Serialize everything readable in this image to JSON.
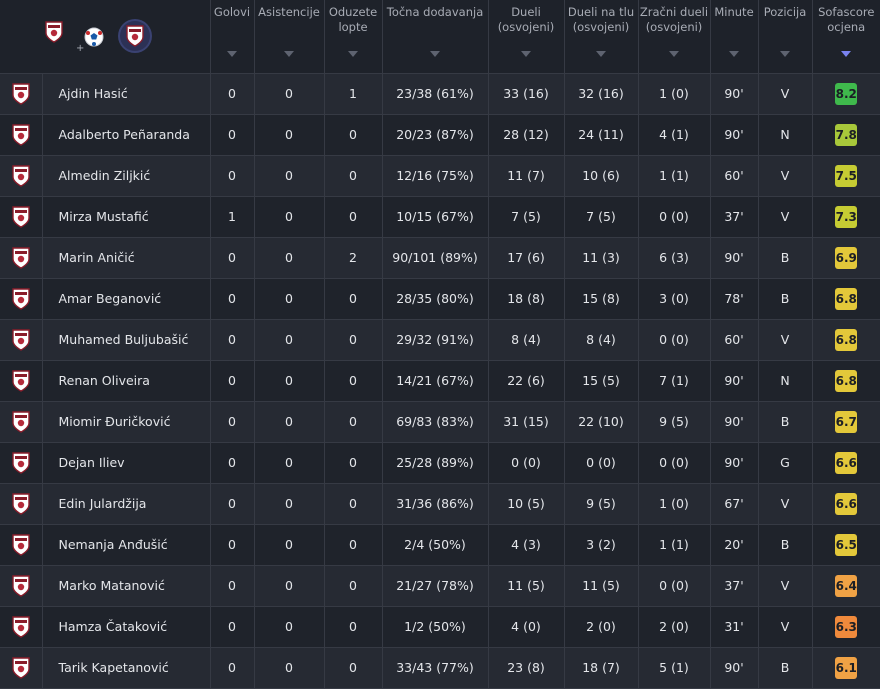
{
  "header": {
    "team_picker": {
      "options": [
        {
          "name": "combined",
          "icon": "club-crest-plus-ball"
        },
        {
          "name": "home-team",
          "icon": "club-crest-icon",
          "selected": true
        },
        {
          "name": "away-team",
          "icon": "soccer-ball-icon"
        }
      ],
      "plus": "+"
    },
    "columns": [
      {
        "key": "goals",
        "label": "Golovi"
      },
      {
        "key": "assists",
        "label": "Asistencije"
      },
      {
        "key": "tackles_won",
        "label": "Oduzete lopte"
      },
      {
        "key": "accurate_passes",
        "label": "Točna dodavanja"
      },
      {
        "key": "duels",
        "label": "Dueli (osvojeni)"
      },
      {
        "key": "ground_duels",
        "label": "Dueli na tlu (osvojeni)"
      },
      {
        "key": "aerial_duels",
        "label": "Zračni dueli (osvojeni)"
      },
      {
        "key": "minutes",
        "label": "Minute"
      },
      {
        "key": "position",
        "label": "Pozicija"
      },
      {
        "key": "rating",
        "label": "Sofascore ocjena",
        "sorted": true
      }
    ]
  },
  "colors": {
    "accent_sort": "#7a83f0",
    "rating_green_dark": "#3fb94c",
    "rating_lime": "#a8c83a",
    "rating_yellow_green": "#c6cc33",
    "rating_yellow": "#e3c83a",
    "rating_orange_light": "#f0a245",
    "rating_orange": "#f08a3c"
  },
  "players": [
    {
      "name": "Ajdin Hasić",
      "goals": "0",
      "assists": "0",
      "tackles": "1",
      "passes": "23/38 (61%)",
      "duels": "33 (16)",
      "ground": "32 (16)",
      "aerial": "1 (0)",
      "minutes": "90'",
      "position": "V",
      "rating": "8.2",
      "rating_color": "#3fb94c"
    },
    {
      "name": "Adalberto Peñaranda",
      "goals": "0",
      "assists": "0",
      "tackles": "0",
      "passes": "20/23 (87%)",
      "duels": "28 (12)",
      "ground": "24 (11)",
      "aerial": "4 (1)",
      "minutes": "90'",
      "position": "N",
      "rating": "7.8",
      "rating_color": "#a8c83a"
    },
    {
      "name": "Almedin Ziljkić",
      "goals": "0",
      "assists": "0",
      "tackles": "0",
      "passes": "12/16 (75%)",
      "duels": "11 (7)",
      "ground": "10 (6)",
      "aerial": "1 (1)",
      "minutes": "60'",
      "position": "V",
      "rating": "7.5",
      "rating_color": "#c6cc33"
    },
    {
      "name": "Mirza Mustafić",
      "goals": "1",
      "assists": "0",
      "tackles": "0",
      "passes": "10/15 (67%)",
      "duels": "7 (5)",
      "ground": "7 (5)",
      "aerial": "0 (0)",
      "minutes": "37'",
      "position": "V",
      "rating": "7.3",
      "rating_color": "#c6cc33"
    },
    {
      "name": "Marin Aničić",
      "goals": "0",
      "assists": "0",
      "tackles": "2",
      "passes": "90/101 (89%)",
      "duels": "17 (6)",
      "ground": "11 (3)",
      "aerial": "6 (3)",
      "minutes": "90'",
      "position": "B",
      "rating": "6.9",
      "rating_color": "#e3c83a"
    },
    {
      "name": "Amar Beganović",
      "goals": "0",
      "assists": "0",
      "tackles": "0",
      "passes": "28/35 (80%)",
      "duels": "18 (8)",
      "ground": "15 (8)",
      "aerial": "3 (0)",
      "minutes": "78'",
      "position": "B",
      "rating": "6.8",
      "rating_color": "#e3c83a"
    },
    {
      "name": "Muhamed Buljubašić",
      "goals": "0",
      "assists": "0",
      "tackles": "0",
      "passes": "29/32 (91%)",
      "duels": "8 (4)",
      "ground": "8 (4)",
      "aerial": "0 (0)",
      "minutes": "60'",
      "position": "V",
      "rating": "6.8",
      "rating_color": "#e3c83a"
    },
    {
      "name": "Renan Oliveira",
      "goals": "0",
      "assists": "0",
      "tackles": "0",
      "passes": "14/21 (67%)",
      "duels": "22 (6)",
      "ground": "15 (5)",
      "aerial": "7 (1)",
      "minutes": "90'",
      "position": "N",
      "rating": "6.8",
      "rating_color": "#e3c83a"
    },
    {
      "name": "Miomir Đuričković",
      "goals": "0",
      "assists": "0",
      "tackles": "0",
      "passes": "69/83 (83%)",
      "duels": "31 (15)",
      "ground": "22 (10)",
      "aerial": "9 (5)",
      "minutes": "90'",
      "position": "B",
      "rating": "6.7",
      "rating_color": "#e3c83a"
    },
    {
      "name": "Dejan Iliev",
      "goals": "0",
      "assists": "0",
      "tackles": "0",
      "passes": "25/28 (89%)",
      "duels": "0 (0)",
      "ground": "0 (0)",
      "aerial": "0 (0)",
      "minutes": "90'",
      "position": "G",
      "rating": "6.6",
      "rating_color": "#e3c83a"
    },
    {
      "name": "Edin Julardžija",
      "goals": "0",
      "assists": "0",
      "tackles": "0",
      "passes": "31/36 (86%)",
      "duels": "10 (5)",
      "ground": "9 (5)",
      "aerial": "1 (0)",
      "minutes": "67'",
      "position": "V",
      "rating": "6.6",
      "rating_color": "#e3c83a"
    },
    {
      "name": "Nemanja Anđušić",
      "goals": "0",
      "assists": "0",
      "tackles": "0",
      "passes": "2/4 (50%)",
      "duels": "4 (3)",
      "ground": "3 (2)",
      "aerial": "1 (1)",
      "minutes": "20'",
      "position": "B",
      "rating": "6.5",
      "rating_color": "#e3c83a"
    },
    {
      "name": "Marko Matanović",
      "goals": "0",
      "assists": "0",
      "tackles": "0",
      "passes": "21/27 (78%)",
      "duels": "11 (5)",
      "ground": "11 (5)",
      "aerial": "0 (0)",
      "minutes": "37'",
      "position": "V",
      "rating": "6.4",
      "rating_color": "#f0a245"
    },
    {
      "name": "Hamza Čataković",
      "goals": "0",
      "assists": "0",
      "tackles": "0",
      "passes": "1/2 (50%)",
      "duels": "4 (0)",
      "ground": "2 (0)",
      "aerial": "2 (0)",
      "minutes": "31'",
      "position": "V",
      "rating": "6.3",
      "rating_color": "#f08a3c"
    },
    {
      "name": "Tarik Kapetanović",
      "goals": "0",
      "assists": "0",
      "tackles": "0",
      "passes": "33/43 (77%)",
      "duels": "23 (8)",
      "ground": "18 (7)",
      "aerial": "5 (1)",
      "minutes": "90'",
      "position": "B",
      "rating": "6.1",
      "rating_color": "#f0a245"
    }
  ]
}
